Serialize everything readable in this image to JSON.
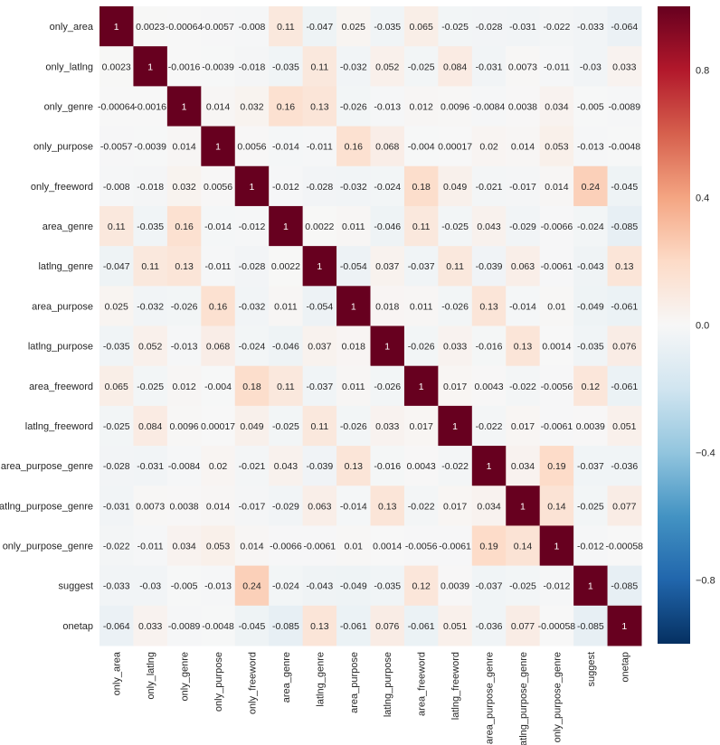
{
  "chart_data": {
    "type": "heatmap",
    "title": "",
    "xlabel": "",
    "ylabel": "",
    "labels": [
      "only_area",
      "only_latlng",
      "only_genre",
      "only_purpose",
      "only_freeword",
      "area_genre",
      "latlng_genre",
      "area_purpose",
      "latlng_purpose",
      "area_freeword",
      "latlng_freeword",
      "area_purpose_genre",
      "latlng_purpose_genre",
      "only_purpose_genre",
      "suggest",
      "onetap"
    ],
    "values": [
      [
        "1",
        "0.0023",
        "-0.00064",
        "-0.0057",
        "-0.008",
        "0.11",
        "-0.047",
        "0.025",
        "-0.035",
        "0.065",
        "-0.025",
        "-0.028",
        "-0.031",
        "-0.022",
        "-0.033",
        "-0.064"
      ],
      [
        "0.0023",
        "1",
        "-0.0016",
        "-0.0039",
        "-0.018",
        "-0.035",
        "0.11",
        "-0.032",
        "0.052",
        "-0.025",
        "0.084",
        "-0.031",
        "0.0073",
        "-0.011",
        "-0.03",
        "0.033"
      ],
      [
        "-0.00064",
        "-0.0016",
        "1",
        "0.014",
        "0.032",
        "0.16",
        "0.13",
        "-0.026",
        "-0.013",
        "0.012",
        "0.0096",
        "-0.0084",
        "0.0038",
        "0.034",
        "-0.005",
        "-0.0089"
      ],
      [
        "-0.0057",
        "-0.0039",
        "0.014",
        "1",
        "0.0056",
        "-0.014",
        "-0.011",
        "0.16",
        "0.068",
        "-0.004",
        "0.00017",
        "0.02",
        "0.014",
        "0.053",
        "-0.013",
        "-0.0048"
      ],
      [
        "-0.008",
        "-0.018",
        "0.032",
        "0.0056",
        "1",
        "-0.012",
        "-0.028",
        "-0.032",
        "-0.024",
        "0.18",
        "0.049",
        "-0.021",
        "-0.017",
        "0.014",
        "0.24",
        "-0.045"
      ],
      [
        "0.11",
        "-0.035",
        "0.16",
        "-0.014",
        "-0.012",
        "1",
        "0.0022",
        "0.011",
        "-0.046",
        "0.11",
        "-0.025",
        "0.043",
        "-0.029",
        "-0.0066",
        "-0.024",
        "-0.085"
      ],
      [
        "-0.047",
        "0.11",
        "0.13",
        "-0.011",
        "-0.028",
        "0.0022",
        "1",
        "-0.054",
        "0.037",
        "-0.037",
        "0.11",
        "-0.039",
        "0.063",
        "-0.0061",
        "-0.043",
        "0.13"
      ],
      [
        "0.025",
        "-0.032",
        "-0.026",
        "0.16",
        "-0.032",
        "0.011",
        "-0.054",
        "1",
        "0.018",
        "0.011",
        "-0.026",
        "0.13",
        "-0.014",
        "0.01",
        "-0.049",
        "-0.061"
      ],
      [
        "-0.035",
        "0.052",
        "-0.013",
        "0.068",
        "-0.024",
        "-0.046",
        "0.037",
        "0.018",
        "1",
        "-0.026",
        "0.033",
        "-0.016",
        "0.13",
        "0.0014",
        "-0.035",
        "0.076"
      ],
      [
        "0.065",
        "-0.025",
        "0.012",
        "-0.004",
        "0.18",
        "0.11",
        "-0.037",
        "0.011",
        "-0.026",
        "1",
        "0.017",
        "0.0043",
        "-0.022",
        "-0.0056",
        "0.12",
        "-0.061"
      ],
      [
        "-0.025",
        "0.084",
        "0.0096",
        "0.00017",
        "0.049",
        "-0.025",
        "0.11",
        "-0.026",
        "0.033",
        "0.017",
        "1",
        "-0.022",
        "0.017",
        "-0.0061",
        "0.0039",
        "0.051"
      ],
      [
        "-0.028",
        "-0.031",
        "-0.0084",
        "0.02",
        "-0.021",
        "0.043",
        "-0.039",
        "0.13",
        "-0.016",
        "0.0043",
        "-0.022",
        "1",
        "0.034",
        "0.19",
        "-0.037",
        "-0.036"
      ],
      [
        "-0.031",
        "0.0073",
        "0.0038",
        "0.014",
        "-0.017",
        "-0.029",
        "0.063",
        "-0.014",
        "0.13",
        "-0.022",
        "0.017",
        "0.034",
        "1",
        "0.14",
        "-0.025",
        "0.077"
      ],
      [
        "-0.022",
        "-0.011",
        "0.034",
        "0.053",
        "0.014",
        "-0.0066",
        "-0.0061",
        "0.01",
        "0.0014",
        "-0.0056",
        "-0.0061",
        "0.19",
        "0.14",
        "1",
        "-0.012",
        "-0.00058"
      ],
      [
        "-0.033",
        "-0.03",
        "-0.005",
        "-0.013",
        "0.24",
        "-0.024",
        "-0.043",
        "-0.049",
        "-0.035",
        "0.12",
        "0.0039",
        "-0.037",
        "-0.025",
        "-0.012",
        "1",
        "-0.085"
      ],
      [
        "-0.064",
        "0.033",
        "-0.0089",
        "-0.0048",
        "-0.045",
        "-0.085",
        "0.13",
        "-0.061",
        "0.076",
        "-0.061",
        "0.051",
        "-0.036",
        "0.077",
        "-0.00058",
        "-0.085",
        "1"
      ]
    ],
    "vmin": -1,
    "vmax": 1,
    "colormap": "RdBu_r",
    "annotated": true,
    "colorbar": {
      "position": "right",
      "ticks": [
        "0.8",
        "0.4",
        "0.0",
        "−0.4",
        "−0.8"
      ],
      "tick_values": [
        0.8,
        0.4,
        0.0,
        -0.4,
        -0.8
      ]
    }
  }
}
